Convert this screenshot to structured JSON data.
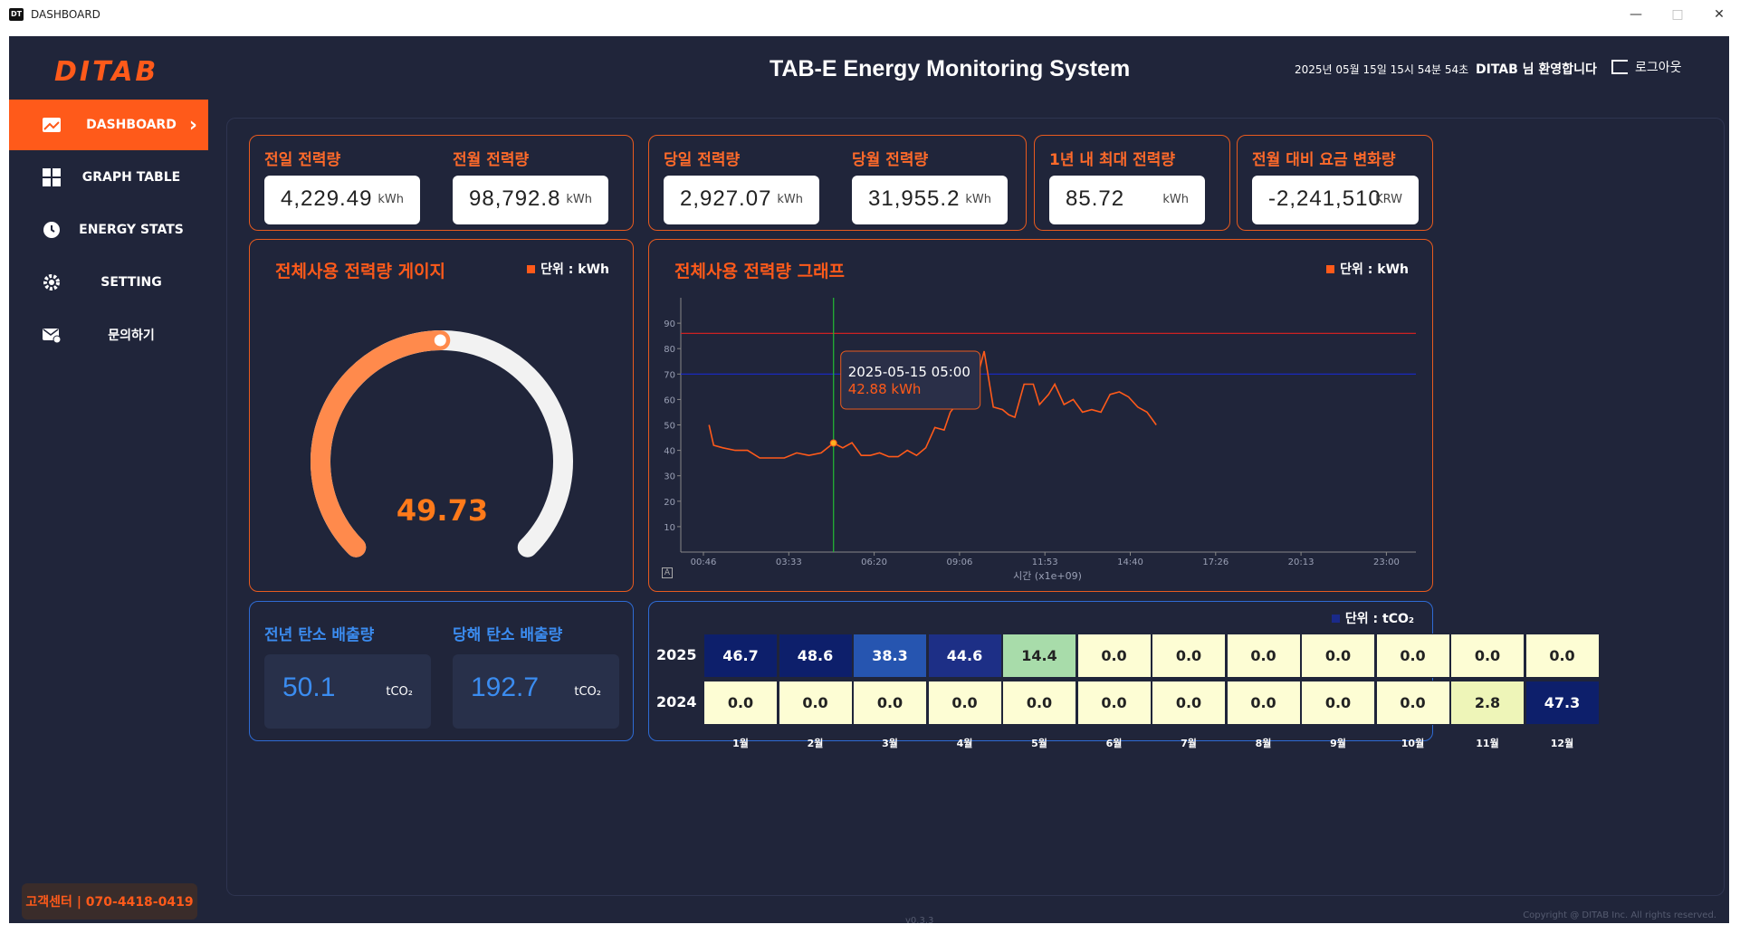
{
  "window": {
    "title": "DASHBOARD",
    "icon_text": "DT",
    "minimize": "—",
    "maximize": "□",
    "close": "✕"
  },
  "header": {
    "logo": "DITAB",
    "title": "TAB-E Energy Monitoring System",
    "datetime": "2025년 05월 15일 15시 54분 54초",
    "welcome": "DITAB 님 환영합니다",
    "logout": "로그아웃"
  },
  "sidebar": {
    "items": [
      {
        "label": "DASHBOARD",
        "icon": "dashboard-icon"
      },
      {
        "label": "GRAPH TABLE",
        "icon": "grid-icon"
      },
      {
        "label": "ENERGY STATS",
        "icon": "clock-icon"
      },
      {
        "label": "SETTING",
        "icon": "gear-icon"
      },
      {
        "label": "문의하기",
        "icon": "mail-icon"
      }
    ],
    "support": "고객센터 | 070-4418-0419"
  },
  "metrics": {
    "prev_day": {
      "label": "전일 전력량",
      "value": "4,229.49",
      "unit": "kWh"
    },
    "prev_month": {
      "label": "전월 전력량",
      "value": "98,792.8",
      "unit": "kWh"
    },
    "today": {
      "label": "당일 전력량",
      "value": "2,927.07",
      "unit": "kWh"
    },
    "this_month": {
      "label": "당월 전력량",
      "value": "31,955.2",
      "unit": "kWh"
    },
    "year_max": {
      "label": "1년 내 최대 전력량",
      "value": "85.72",
      "unit": "kWh"
    },
    "fee_change": {
      "label": "전월 대비 요금 변화량",
      "value": "-2,241,510",
      "unit": "KRW"
    }
  },
  "gauge": {
    "title": "전체사용 전력량 게이지",
    "legend": "단위 : kWh",
    "value": "49.73",
    "fraction": 0.4973,
    "colors": {
      "fill": "#ff8a4c",
      "track": "#f2f2f2"
    }
  },
  "chart_data": {
    "type": "line",
    "title": "전체사용 전력량 그래프",
    "legend": "단위 : kWh",
    "xlabel": "시간 (x1e+09)",
    "x_ticks": [
      "00:46",
      "03:33",
      "06:20",
      "09:06",
      "11:53",
      "14:40",
      "17:26",
      "20:13",
      "23:00"
    ],
    "y_ticks": [
      "10",
      "20",
      "30",
      "40",
      "50",
      "60",
      "70",
      "80",
      "90"
    ],
    "ylim": [
      0,
      100
    ],
    "xlim": [
      0.76,
      23.0
    ],
    "grid": false,
    "reference_lines": [
      {
        "value": 86,
        "color": "#cc2222"
      },
      {
        "value": 70,
        "color": "#1a2acc"
      }
    ],
    "series": [
      {
        "color": "#ff5a1a",
        "x": [
          0.95,
          1.1,
          1.4,
          1.8,
          2.2,
          2.6,
          3.0,
          3.4,
          3.8,
          4.2,
          4.6,
          5.0,
          5.3,
          5.6,
          5.9,
          6.2,
          6.5,
          6.8,
          7.1,
          7.4,
          7.7,
          8.0,
          8.3,
          8.6,
          8.8,
          9.0,
          9.3,
          9.6,
          9.9,
          10.2,
          10.5,
          10.7,
          10.9,
          11.2,
          11.5,
          11.7,
          12.0,
          12.2,
          12.5,
          12.8,
          13.1,
          13.4,
          13.7,
          14.0,
          14.3,
          14.6,
          14.9,
          15.2,
          15.5
        ],
        "y": [
          50,
          42,
          41,
          40,
          40,
          37,
          37,
          37,
          39,
          38,
          39,
          42.88,
          41,
          43,
          38,
          38,
          39,
          37.5,
          37.5,
          40,
          38,
          41,
          49,
          48,
          55,
          58,
          62,
          65,
          79,
          57,
          56,
          54,
          53,
          66,
          66,
          58,
          62,
          66,
          58,
          60,
          55,
          56,
          55,
          62,
          63,
          61,
          57,
          55,
          50
        ]
      }
    ],
    "tooltip": {
      "time": "2025-05-15 05:00",
      "value": "42.88 kWh"
    },
    "cursor_x": 5.0
  },
  "carbon": {
    "prev_year": {
      "label": "전년 탄소 배출량",
      "value": "50.1",
      "unit": "tCO₂"
    },
    "this_year": {
      "label": "당해 탄소 배출량",
      "value": "192.7",
      "unit": "tCO₂"
    }
  },
  "heatmap": {
    "legend": "단위 : tCO₂",
    "months": [
      "1월",
      "2월",
      "3월",
      "4월",
      "5월",
      "6월",
      "7월",
      "8월",
      "9월",
      "10월",
      "11월",
      "12월"
    ],
    "rows": [
      {
        "year": "2025",
        "values": [
          "46.7",
          "48.6",
          "38.3",
          "44.6",
          "14.4",
          "0.0",
          "0.0",
          "0.0",
          "0.0",
          "0.0",
          "0.0",
          "0.0"
        ]
      },
      {
        "year": "2024",
        "values": [
          "0.0",
          "0.0",
          "0.0",
          "0.0",
          "0.0",
          "0.0",
          "0.0",
          "0.0",
          "0.0",
          "0.0",
          "2.8",
          "47.3"
        ]
      }
    ]
  },
  "footer": {
    "version": "v0.3.3",
    "copyright": "Copyright @ DITAB Inc. All rights reserved."
  }
}
